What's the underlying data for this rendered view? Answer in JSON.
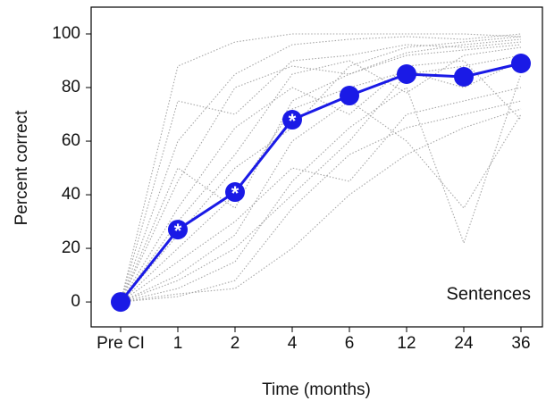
{
  "chart_data": {
    "type": "line",
    "x_label": "Time (months)",
    "y_label": "Percent correct",
    "annotation": "Sentences",
    "categories": [
      "Pre CI",
      "1",
      "2",
      "4",
      "6",
      "12",
      "24",
      "36"
    ],
    "ylim": [
      -9.3,
      110
    ],
    "yticks": [
      0,
      20,
      40,
      60,
      80,
      100
    ],
    "series": [
      {
        "color": "#a6a6a6",
        "style": "dotted",
        "values": [
          0,
          88,
          97,
          100,
          100,
          100,
          100,
          99
        ]
      },
      {
        "color": "#a6a6a6",
        "style": "dotted",
        "values": [
          0,
          60,
          85,
          96,
          98,
          99,
          98,
          100
        ]
      },
      {
        "color": "#a6a6a6",
        "style": "dotted",
        "values": [
          0,
          75,
          70,
          90,
          92,
          96,
          95,
          97
        ]
      },
      {
        "color": "#a6a6a6",
        "style": "dotted",
        "values": [
          0,
          45,
          80,
          88,
          85,
          93,
          96,
          98
        ]
      },
      {
        "color": "#a6a6a6",
        "style": "dotted",
        "values": [
          0,
          30,
          55,
          85,
          90,
          78,
          92,
          95
        ]
      },
      {
        "color": "#a6a6a6",
        "style": "dotted",
        "values": [
          0,
          20,
          40,
          72,
          80,
          86,
          80,
          90
        ]
      },
      {
        "color": "#a6a6a6",
        "style": "dotted",
        "values": [
          0,
          10,
          25,
          60,
          75,
          60,
          35,
          70
        ]
      },
      {
        "color": "#a6a6a6",
        "style": "dotted",
        "values": [
          0,
          5,
          15,
          45,
          65,
          80,
          22,
          85
        ]
      },
      {
        "color": "#a6a6a6",
        "style": "dotted",
        "values": [
          0,
          15,
          30,
          50,
          45,
          70,
          75,
          80
        ]
      },
      {
        "color": "#a6a6a6",
        "style": "dotted",
        "values": [
          0,
          2,
          8,
          35,
          55,
          65,
          70,
          75
        ]
      },
      {
        "color": "#a6a6a6",
        "style": "dotted",
        "values": [
          0,
          8,
          20,
          40,
          60,
          85,
          88,
          92
        ]
      },
      {
        "color": "#a6a6a6",
        "style": "dotted",
        "values": [
          0,
          35,
          65,
          80,
          70,
          88,
          90,
          68
        ]
      },
      {
        "color": "#a6a6a6",
        "style": "dotted",
        "values": [
          0,
          50,
          35,
          75,
          85,
          92,
          94,
          96
        ]
      },
      {
        "color": "#a6a6a6",
        "style": "dotted",
        "values": [
          0,
          3,
          5,
          20,
          40,
          55,
          65,
          72
        ]
      },
      {
        "color": "#a6a6a6",
        "style": "dotted",
        "values": [
          0,
          25,
          50,
          65,
          88,
          95,
          97,
          99
        ]
      },
      {
        "color": "#1a1ae6",
        "style": "solid",
        "marker": "circle",
        "values": [
          0,
          27,
          41,
          68,
          77,
          85,
          84,
          89
        ],
        "point_labels": [
          null,
          "*",
          "*",
          "*",
          null,
          null,
          null,
          null
        ]
      }
    ]
  }
}
